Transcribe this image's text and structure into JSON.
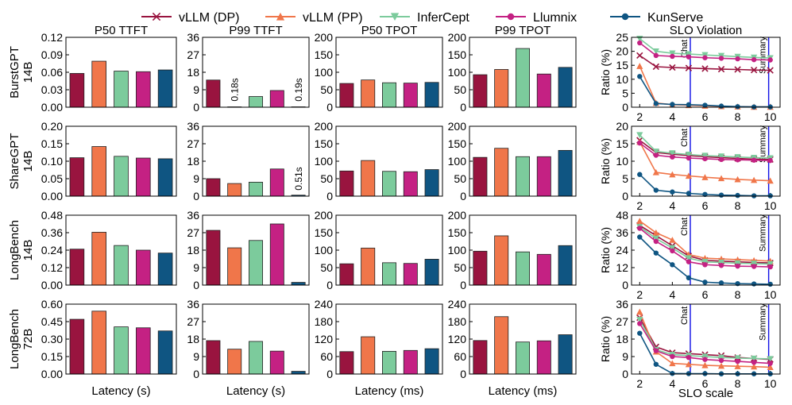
{
  "legend": [
    {
      "name": "vLLM (DP)",
      "color": "#99143f",
      "marker": "x"
    },
    {
      "name": "vLLM (PP)",
      "color": "#f0764a",
      "marker": "triangle-up"
    },
    {
      "name": "InferCept",
      "color": "#7ccb9c",
      "marker": "triangle-down"
    },
    {
      "name": "Llumnix",
      "color": "#c42183",
      "marker": "circle"
    },
    {
      "name": "KunServe",
      "color": "#0f5582",
      "marker": "circle"
    }
  ],
  "column_titles": [
    "P50 TTFT",
    "P99 TTFT",
    "P50 TPOT",
    "P99 TPOT",
    "SLO Violation"
  ],
  "row_labels": [
    [
      "BurstGPT",
      "14B"
    ],
    [
      "ShareGPT",
      "14B"
    ],
    [
      "LongBench",
      "14B"
    ],
    [
      "LongBench",
      "72B"
    ]
  ],
  "x_labels": [
    "Latency (s)",
    "Latency (s)",
    "Latency (ms)",
    "Latency (ms)",
    "SLO scale"
  ],
  "slo_ylabel": "Ratio (%)",
  "markers": {
    "chat": "Chat",
    "summary": "Summary",
    "chat_x": 5.1,
    "summary_x": 9.9
  },
  "chart_data": {
    "type": "bar",
    "series_names": [
      "vLLM (DP)",
      "vLLM (PP)",
      "InferCept",
      "Llumnix",
      "KunServe"
    ],
    "bars": [
      [
        {
          "ymax": 0.12,
          "ticks": [
            "0.00",
            "0.03",
            "0.06",
            "0.09",
            "0.12"
          ],
          "values": [
            0.058,
            0.079,
            0.062,
            0.061,
            0.064
          ]
        },
        {
          "ymax": 36,
          "ticks": [
            "0",
            "9",
            "18",
            "27",
            "36"
          ],
          "values": [
            14.0,
            0.18,
            5.5,
            8.6,
            0.19
          ],
          "annotations": [
            {
              "index": 1,
              "text": "0.18s"
            },
            {
              "index": 4,
              "text": "0.19s"
            }
          ]
        },
        {
          "ymax": 200,
          "ticks": [
            "0",
            "50",
            "100",
            "150",
            "200"
          ],
          "values": [
            68,
            78,
            70,
            69,
            71
          ]
        },
        {
          "ymax": 200,
          "ticks": [
            "0",
            "50",
            "100",
            "150",
            "200"
          ],
          "values": [
            93,
            108,
            168,
            95,
            114
          ]
        }
      ],
      [
        {
          "ymax": 0.2,
          "ticks": [
            "0.00",
            "0.05",
            "0.10",
            "0.15",
            "0.20"
          ],
          "values": [
            0.11,
            0.142,
            0.114,
            0.109,
            0.107
          ]
        },
        {
          "ymax": 36,
          "ticks": [
            "0",
            "9",
            "18",
            "27",
            "36"
          ],
          "values": [
            9.0,
            6.5,
            7.2,
            14.0,
            0.51
          ],
          "annotations": [
            {
              "index": 4,
              "text": "0.51s"
            }
          ]
        },
        {
          "ymax": 200,
          "ticks": [
            "0",
            "50",
            "100",
            "150",
            "200"
          ],
          "values": [
            72,
            102,
            71,
            70,
            76
          ]
        },
        {
          "ymax": 200,
          "ticks": [
            "0",
            "50",
            "100",
            "150",
            "200"
          ],
          "values": [
            111,
            137,
            113,
            113,
            131
          ]
        }
      ],
      [
        {
          "ymax": 0.48,
          "ticks": [
            "0.00",
            "0.12",
            "0.24",
            "0.36",
            "0.48"
          ],
          "values": [
            0.247,
            0.363,
            0.272,
            0.24,
            0.22
          ]
        },
        {
          "ymax": 36,
          "ticks": [
            "0",
            "9",
            "18",
            "27",
            "36"
          ],
          "values": [
            28.2,
            19.2,
            23.0,
            31.5,
            1.4
          ]
        },
        {
          "ymax": 200,
          "ticks": [
            "0",
            "50",
            "100",
            "150",
            "200"
          ],
          "values": [
            61,
            106,
            64,
            62,
            74
          ]
        },
        {
          "ymax": 200,
          "ticks": [
            "0",
            "50",
            "100",
            "150",
            "200"
          ],
          "values": [
            97,
            141,
            95,
            88,
            113
          ]
        }
      ],
      [
        {
          "ymax": 0.6,
          "ticks": [
            "0.00",
            "0.15",
            "0.30",
            "0.45",
            "0.60"
          ],
          "values": [
            0.47,
            0.54,
            0.405,
            0.397,
            0.37
          ]
        },
        {
          "ymax": 36,
          "ticks": [
            "0",
            "9",
            "18",
            "27",
            "36"
          ],
          "values": [
            17.2,
            12.8,
            16.8,
            11.8,
            1.4
          ]
        },
        {
          "ymax": 240,
          "ticks": [
            "0",
            "60",
            "120",
            "180",
            "240"
          ],
          "values": [
            77,
            128,
            78,
            81,
            87
          ]
        },
        {
          "ymax": 240,
          "ticks": [
            "0",
            "60",
            "120",
            "180",
            "240"
          ],
          "values": [
            115,
            197,
            110,
            114,
            135
          ]
        }
      ]
    ],
    "slo": [
      {
        "ymax": 25,
        "ticks": [
          "0",
          "5",
          "10",
          "15",
          "20",
          "25"
        ],
        "x": [
          2,
          3,
          4,
          5,
          6,
          7,
          8,
          9,
          10
        ],
        "series": [
          [
            18.5,
            14.5,
            14.2,
            14.0,
            13.8,
            13.6,
            13.5,
            13.3,
            13.2
          ],
          [
            14.7,
            1.5,
            0.9,
            0.7,
            0.5,
            0.3,
            0.2,
            0.1,
            0.1
          ],
          [
            24.5,
            20.0,
            19.3,
            19.0,
            18.7,
            18.4,
            18.1,
            17.8,
            17.6
          ],
          [
            23.0,
            18.5,
            18.2,
            18.0,
            17.7,
            17.5,
            17.3,
            17.0,
            16.9
          ],
          [
            11.0,
            1.3,
            1.0,
            0.9,
            0.7,
            0.4,
            0.2,
            0.1,
            0.1
          ]
        ]
      },
      {
        "ymax": 20,
        "ticks": [
          "0",
          "5",
          "10",
          "15",
          "20"
        ],
        "x": [
          2,
          3,
          4,
          5,
          6,
          7,
          8,
          9,
          10
        ],
        "series": [
          [
            16.0,
            12.5,
            12.0,
            11.6,
            11.3,
            11.0,
            10.8,
            10.6,
            10.5
          ],
          [
            15.5,
            6.8,
            6.2,
            5.8,
            5.4,
            5.1,
            4.8,
            4.6,
            4.4
          ],
          [
            17.5,
            12.8,
            12.3,
            11.9,
            11.6,
            11.4,
            11.2,
            11.0,
            10.9
          ],
          [
            15.2,
            11.7,
            11.2,
            10.9,
            10.7,
            10.5,
            10.4,
            10.3,
            10.2
          ],
          [
            6.2,
            1.7,
            1.2,
            0.8,
            0.5,
            0.3,
            0.2,
            0.1,
            0.1
          ]
        ]
      },
      {
        "ymax": 48,
        "ticks": [
          "0",
          "12",
          "24",
          "36",
          "48"
        ],
        "x": [
          2,
          3,
          4,
          5,
          6,
          7,
          8,
          9,
          10
        ],
        "series": [
          [
            41.0,
            34.0,
            27.0,
            20.0,
            17.0,
            16.5,
            16.0,
            15.5,
            15.2
          ],
          [
            44.0,
            36.0,
            31.0,
            21.0,
            18.5,
            18.0,
            17.5,
            17.0,
            16.5
          ],
          [
            40.0,
            32.0,
            25.5,
            18.5,
            16.0,
            15.5,
            15.0,
            14.8,
            14.5
          ],
          [
            39.0,
            30.0,
            23.5,
            16.0,
            14.0,
            13.5,
            13.0,
            12.8,
            12.5
          ],
          [
            33.0,
            22.0,
            14.0,
            5.0,
            2.0,
            1.5,
            1.0,
            0.8,
            0.6
          ]
        ]
      },
      {
        "ymax": 36,
        "ticks": [
          "0",
          "9",
          "18",
          "27",
          "36"
        ],
        "x": [
          2,
          3,
          4,
          5,
          6,
          7,
          8,
          9,
          10
        ],
        "series": [
          [
            29.0,
            14.0,
            11.0,
            10.5,
            10.0,
            9.5,
            8.5,
            8.0,
            7.5
          ],
          [
            32.0,
            11.5,
            5.5,
            5.0,
            4.5,
            4.2,
            4.0,
            3.8,
            3.5
          ],
          [
            28.0,
            12.5,
            10.0,
            9.5,
            9.0,
            8.5,
            8.2,
            8.0,
            7.8
          ],
          [
            26.0,
            12.0,
            9.0,
            8.5,
            7.5,
            7.0,
            6.5,
            6.0,
            5.5
          ],
          [
            21.0,
            5.0,
            0.3,
            0.2,
            0.2,
            0.1,
            0.1,
            0.1,
            0.1
          ]
        ]
      }
    ],
    "slo_xlim": [
      1.5,
      10.6
    ],
    "slo_xticks": [
      2,
      4,
      6,
      8,
      10
    ]
  }
}
